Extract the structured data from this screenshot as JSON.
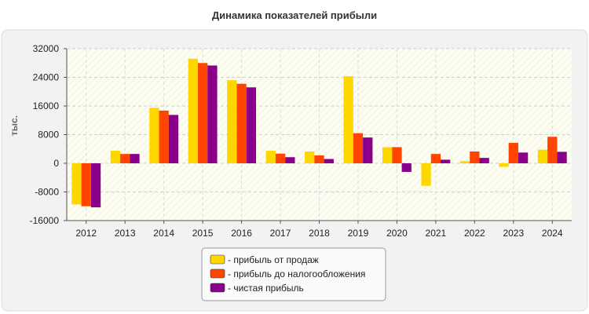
{
  "chart_data": {
    "type": "bar",
    "title": "Динамика показателей прибыли",
    "ylabel": "тыс.",
    "xlabel": "",
    "ylim": [
      -16000,
      32000
    ],
    "yticks": [
      32000,
      24000,
      16000,
      8000,
      0,
      -8000,
      -16000
    ],
    "grid": true,
    "legend_position": "bottom-center",
    "categories": [
      "2012",
      "2013",
      "2014",
      "2015",
      "2016",
      "2017",
      "2018",
      "2019",
      "2020",
      "2021",
      "2022",
      "2023",
      "2024"
    ],
    "series": [
      {
        "name": "- прибыль от продаж",
        "color": "#FFD700",
        "values": [
          -11500,
          3500,
          15500,
          29200,
          23200,
          3500,
          3300,
          24300,
          4500,
          -6300,
          600,
          -1000,
          3800
        ]
      },
      {
        "name": "- прибыль до налогообложения",
        "color": "#FF4500",
        "values": [
          -12000,
          2600,
          14700,
          28000,
          22200,
          2700,
          2200,
          8400,
          4500,
          2600,
          3300,
          5700,
          7400
        ]
      },
      {
        "name": "- чистая прибыль",
        "color": "#8B008B",
        "values": [
          -12300,
          2600,
          13500,
          27300,
          21200,
          1700,
          1200,
          7200,
          -2400,
          1000,
          1500,
          3000,
          3200
        ]
      }
    ]
  }
}
